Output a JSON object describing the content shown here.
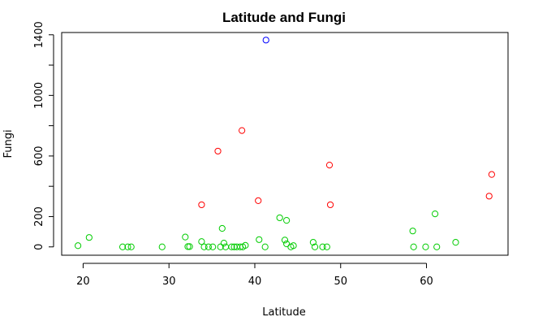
{
  "chart_data": {
    "type": "scatter",
    "title": "Latitude and Fungi",
    "xlabel": "Latitude",
    "ylabel": "Fungi",
    "xlim": [
      17.5,
      69.5
    ],
    "ylim": [
      -55,
      1415
    ],
    "xticks": [
      20,
      30,
      40,
      50,
      60
    ],
    "yticks": [
      0,
      200,
      600,
      1000,
      1400
    ],
    "grid": false,
    "legend": "none",
    "colors": {
      "green": "#00cc00",
      "red": "#ff0000",
      "blue": "#0000ff"
    },
    "series": [
      {
        "color": "green",
        "points": [
          [
            19.4,
            8
          ],
          [
            20.7,
            62
          ],
          [
            24.6,
            0
          ],
          [
            25.2,
            0
          ],
          [
            25.6,
            0
          ],
          [
            29.2,
            0
          ],
          [
            31.9,
            65
          ],
          [
            32.2,
            2
          ],
          [
            32.4,
            2
          ],
          [
            33.8,
            35
          ],
          [
            34.1,
            0
          ],
          [
            34.6,
            0
          ],
          [
            35.1,
            0
          ],
          [
            36.0,
            0
          ],
          [
            36.2,
            122
          ],
          [
            36.4,
            25
          ],
          [
            36.6,
            0
          ],
          [
            37.3,
            0
          ],
          [
            37.6,
            0
          ],
          [
            37.9,
            0
          ],
          [
            38.3,
            0
          ],
          [
            38.6,
            0
          ],
          [
            38.9,
            10
          ],
          [
            40.5,
            48
          ],
          [
            41.2,
            0
          ],
          [
            42.9,
            192
          ],
          [
            43.5,
            45
          ],
          [
            43.7,
            20
          ],
          [
            43.7,
            175
          ],
          [
            44.2,
            0
          ],
          [
            44.5,
            8
          ],
          [
            46.8,
            30
          ],
          [
            47.0,
            0
          ],
          [
            47.9,
            0
          ],
          [
            48.4,
            0
          ],
          [
            58.4,
            105
          ],
          [
            58.5,
            0
          ],
          [
            59.9,
            0
          ],
          [
            61.0,
            218
          ],
          [
            61.2,
            0
          ],
          [
            63.4,
            30
          ]
        ]
      },
      {
        "color": "red",
        "points": [
          [
            33.8,
            278
          ],
          [
            35.7,
            632
          ],
          [
            38.5,
            768
          ],
          [
            40.4,
            305
          ],
          [
            48.7,
            540
          ],
          [
            48.8,
            278
          ],
          [
            67.3,
            335
          ],
          [
            67.6,
            478
          ]
        ]
      },
      {
        "color": "blue",
        "points": [
          [
            41.3,
            1365
          ]
        ]
      }
    ]
  }
}
